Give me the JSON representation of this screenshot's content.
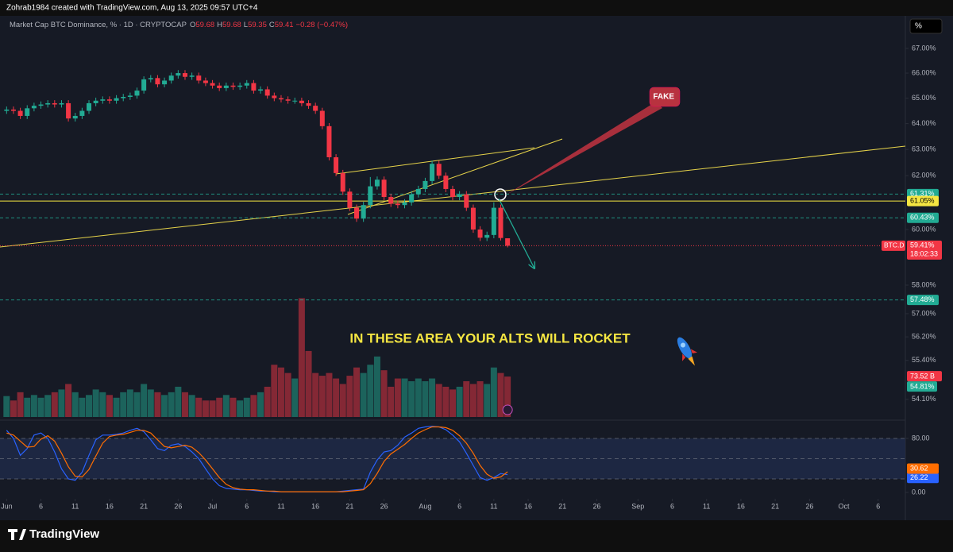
{
  "chart_data": {
    "type": "candlestick",
    "author_line": "Zohrab1984 created with TradingView.com, Aug 13, 2025 09:57 UTC+4",
    "title": "Market Cap BTC Dominance, % · 1D · CRYPTOCAP",
    "legend": {
      "o_key": "O",
      "o": "59.68",
      "h_key": "H",
      "h": "59.68",
      "l_key": "L",
      "l": "59.35",
      "c_key": "C",
      "c": "59.41",
      "change": "−0.28 (−0.47%)"
    },
    "scale_button": "%",
    "log_scale": true,
    "grid": false,
    "up_color": "#22ab94",
    "down_color": "#f23645",
    "open": [
      64.5,
      64.55,
      64.5,
      64.3,
      64.6,
      64.7,
      64.75,
      64.8,
      64.75,
      64.8,
      64.2,
      64.3,
      64.5,
      64.8,
      64.9,
      64.95,
      64.9,
      65.0,
      65.05,
      65.1,
      65.3,
      65.75,
      65.8,
      65.55,
      65.7,
      65.9,
      66.0,
      65.85,
      65.9,
      65.7,
      65.6,
      65.5,
      65.4,
      65.5,
      65.45,
      65.5,
      65.6,
      65.3,
      65.35,
      65.1,
      65.0,
      64.95,
      64.9,
      64.9,
      64.8,
      64.7,
      64.5,
      63.9,
      62.7,
      62.1,
      61.4,
      60.8,
      60.4,
      60.9,
      61.6,
      61.85,
      61.2,
      60.95,
      60.9,
      61.0,
      61.3,
      61.5,
      61.8,
      62.45,
      62.0,
      61.5,
      61.2,
      61.3,
      60.8,
      60.0,
      59.7,
      59.8,
      60.8,
      59.68
    ],
    "high": [
      64.67,
      64.67,
      64.62,
      64.72,
      64.82,
      64.87,
      64.92,
      64.92,
      64.92,
      64.92,
      64.42,
      64.62,
      64.92,
      65.02,
      65.07,
      65.07,
      65.12,
      65.17,
      65.22,
      65.42,
      65.87,
      65.92,
      65.92,
      65.82,
      66.02,
      66.12,
      66.12,
      66.02,
      66.02,
      65.82,
      65.72,
      65.62,
      65.62,
      65.62,
      65.62,
      65.72,
      65.72,
      65.47,
      65.47,
      65.22,
      65.12,
      65.07,
      65.02,
      65.02,
      64.92,
      64.82,
      64.62,
      64.02,
      62.82,
      62.22,
      61.52,
      60.92,
      61.02,
      61.95,
      61.97,
      61.97,
      61.32,
      61.07,
      61.12,
      61.42,
      61.62,
      61.92,
      62.57,
      62.57,
      62.12,
      61.62,
      61.42,
      61.42,
      60.92,
      60.12,
      59.92,
      61.0,
      60.92,
      59.68
    ],
    "low": [
      64.38,
      64.38,
      64.18,
      64.18,
      64.48,
      64.58,
      64.63,
      64.63,
      64.63,
      64.08,
      64.08,
      64.18,
      64.38,
      64.68,
      64.78,
      64.78,
      64.78,
      64.88,
      64.93,
      64.98,
      65.18,
      65.63,
      65.43,
      65.43,
      65.58,
      65.78,
      65.73,
      65.73,
      65.58,
      65.48,
      65.38,
      65.28,
      65.28,
      65.33,
      65.33,
      65.38,
      65.18,
      65.18,
      64.98,
      64.88,
      64.83,
      64.78,
      64.78,
      64.68,
      64.58,
      64.38,
      63.78,
      62.58,
      61.98,
      61.28,
      60.68,
      60.28,
      60.28,
      60.78,
      61.48,
      61.08,
      60.83,
      60.78,
      60.78,
      60.88,
      61.18,
      61.38,
      61.68,
      61.88,
      61.38,
      61.08,
      61.08,
      60.68,
      59.88,
      59.58,
      59.58,
      59.68,
      59.6,
      59.35
    ],
    "close": [
      64.55,
      64.5,
      64.3,
      64.6,
      64.7,
      64.75,
      64.8,
      64.75,
      64.8,
      64.2,
      64.3,
      64.5,
      64.8,
      64.9,
      64.95,
      64.9,
      65.0,
      65.05,
      65.1,
      65.3,
      65.75,
      65.8,
      65.55,
      65.7,
      65.9,
      66.0,
      65.85,
      65.9,
      65.7,
      65.6,
      65.5,
      65.4,
      65.5,
      65.45,
      65.5,
      65.6,
      65.3,
      65.35,
      65.1,
      65.0,
      64.95,
      64.9,
      64.9,
      64.8,
      64.7,
      64.5,
      63.9,
      62.7,
      62.1,
      61.4,
      60.8,
      60.4,
      60.9,
      61.6,
      61.85,
      61.2,
      60.95,
      60.9,
      61.0,
      61.3,
      61.5,
      61.8,
      62.45,
      62.0,
      61.5,
      61.2,
      61.3,
      60.8,
      60.0,
      59.7,
      59.8,
      60.8,
      59.69,
      59.41
    ],
    "xlim": [
      -0.5,
      130.5
    ],
    "xticks": [
      {
        "value": 0,
        "label": "Jun"
      },
      {
        "value": 5,
        "label": "6"
      },
      {
        "value": 10,
        "label": "11"
      },
      {
        "value": 15,
        "label": "16"
      },
      {
        "value": 20,
        "label": "21"
      },
      {
        "value": 25,
        "label": "26"
      },
      {
        "value": 30,
        "label": "Jul"
      },
      {
        "value": 35,
        "label": "6"
      },
      {
        "value": 40,
        "label": "11"
      },
      {
        "value": 45,
        "label": "16"
      },
      {
        "value": 50,
        "label": "21"
      },
      {
        "value": 55,
        "label": "26"
      },
      {
        "value": 61,
        "label": "Aug"
      },
      {
        "value": 66,
        "label": "6"
      },
      {
        "value": 71,
        "label": "11"
      },
      {
        "value": 76,
        "label": "16"
      },
      {
        "value": 81,
        "label": "21"
      },
      {
        "value": 86,
        "label": "26"
      },
      {
        "value": 92,
        "label": "Sep"
      },
      {
        "value": 97,
        "label": "6"
      },
      {
        "value": 102,
        "label": "11"
      },
      {
        "value": 107,
        "label": "16"
      },
      {
        "value": 112,
        "label": "21"
      },
      {
        "value": 117,
        "label": "26"
      },
      {
        "value": 122,
        "label": "Oct"
      },
      {
        "value": 127,
        "label": "6"
      }
    ],
    "ylim": [
      53.47,
      67.52
    ],
    "yticks": [
      {
        "value": 67,
        "label": "67.00%"
      },
      {
        "value": 66,
        "label": "66.00%"
      },
      {
        "value": 65,
        "label": "65.00%"
      },
      {
        "value": 64,
        "label": "64.00%"
      },
      {
        "value": 63,
        "label": "63.00%"
      },
      {
        "value": 62,
        "label": "62.00%"
      },
      {
        "value": 60,
        "label": "60.00%"
      },
      {
        "value": 58,
        "label": "58.00%"
      },
      {
        "value": 57,
        "label": "57.00%"
      },
      {
        "value": 56.2,
        "label": "56.20%"
      },
      {
        "value": 55.4,
        "label": "55.40%"
      },
      {
        "value": 54.1,
        "label": "54.10%"
      }
    ],
    "levels": [
      {
        "value": 61.31,
        "label": "61.31%",
        "color": "#22ab94",
        "style": "dashed"
      },
      {
        "value": 61.05,
        "label": "61.05%",
        "color": "#f5e642",
        "style": "solid"
      },
      {
        "value": 60.43,
        "label": "60.43%",
        "color": "#22ab94",
        "style": "dashed"
      },
      {
        "value": 57.48,
        "label": "57.48%",
        "color": "#22ab94",
        "style": "dashed"
      }
    ],
    "last_price": {
      "value": 59.41,
      "label": "59.41%",
      "symbol": "BTC.D",
      "countdown": "18:02:33",
      "color": "#f23645"
    },
    "volume": {
      "lim": [
        0,
        520
      ],
      "values": [
        38,
        30,
        45,
        35,
        40,
        35,
        40,
        45,
        50,
        60,
        45,
        35,
        40,
        50,
        45,
        40,
        35,
        45,
        50,
        45,
        60,
        50,
        45,
        40,
        45,
        55,
        45,
        40,
        35,
        30,
        30,
        35,
        40,
        35,
        30,
        35,
        40,
        45,
        55,
        95,
        90,
        80,
        70,
        216,
        120,
        80,
        75,
        80,
        70,
        60,
        75,
        90,
        80,
        95,
        110,
        85,
        55,
        70,
        70,
        65,
        70,
        65,
        70,
        60,
        55,
        50,
        55,
        65,
        60,
        65,
        60,
        90,
        80,
        73.52
      ],
      "value_labels": [
        null,
        null,
        null,
        null,
        null,
        null,
        null,
        null,
        null,
        null,
        null,
        null,
        null,
        null,
        null,
        null,
        null,
        null,
        null,
        null,
        null,
        null,
        null,
        null,
        null,
        null,
        null,
        null,
        null,
        null,
        null,
        null,
        null,
        null,
        null,
        null,
        null,
        null,
        null,
        null,
        null,
        null,
        null,
        null,
        null,
        null,
        null,
        null,
        null,
        null,
        null,
        null,
        null,
        null,
        null,
        null,
        null,
        null,
        null,
        null,
        null,
        null,
        null,
        null,
        null,
        null,
        null,
        null,
        null,
        null,
        null,
        null,
        null,
        "73.52 B"
      ],
      "pct_label": "54.81%"
    },
    "stoch": {
      "lim": [
        0,
        100
      ],
      "yticks": [
        {
          "value": 80,
          "label": "80.00"
        },
        {
          "value": 0,
          "label": "0.00"
        }
      ],
      "bands": [
        20,
        50,
        80
      ],
      "series": [
        {
          "name": "K",
          "color": "#2962ff",
          "values": [
            92,
            80,
            55,
            65,
            85,
            88,
            80,
            60,
            35,
            20,
            18,
            30,
            55,
            78,
            85,
            85,
            86,
            88,
            92,
            95,
            90,
            78,
            65,
            62,
            70,
            72,
            68,
            60,
            50,
            35,
            20,
            10,
            6,
            5,
            4,
            4,
            3,
            2,
            2,
            1,
            1,
            1,
            1,
            1,
            1,
            1,
            1,
            1,
            1,
            2,
            3,
            4,
            5,
            30,
            48,
            60,
            62,
            70,
            82,
            88,
            95,
            97,
            98,
            97,
            93,
            85,
            75,
            58,
            40,
            22,
            18,
            22,
            28,
            26.22
          ]
        },
        {
          "name": "D",
          "color": "#ff6d00",
          "values": [
            88,
            85,
            76,
            67,
            68,
            79,
            84,
            76,
            58,
            38,
            24,
            23,
            34,
            54,
            73,
            83,
            85,
            86,
            89,
            92,
            92,
            88,
            78,
            68,
            66,
            68,
            70,
            67,
            59,
            48,
            35,
            22,
            12,
            7,
            5,
            4,
            4,
            3,
            2,
            2,
            1,
            1,
            1,
            1,
            1,
            1,
            1,
            1,
            1,
            1,
            2,
            3,
            4,
            13,
            28,
            46,
            57,
            64,
            71,
            80,
            88,
            93,
            97,
            97,
            96,
            92,
            84,
            73,
            58,
            40,
            27,
            21,
            23,
            30.62
          ]
        }
      ]
    },
    "annotations": {
      "rocket_text": "IN THESE AREA YOUR ALTS WILL ROCKET",
      "fake": "FAKE"
    },
    "brand": "TradingView"
  }
}
